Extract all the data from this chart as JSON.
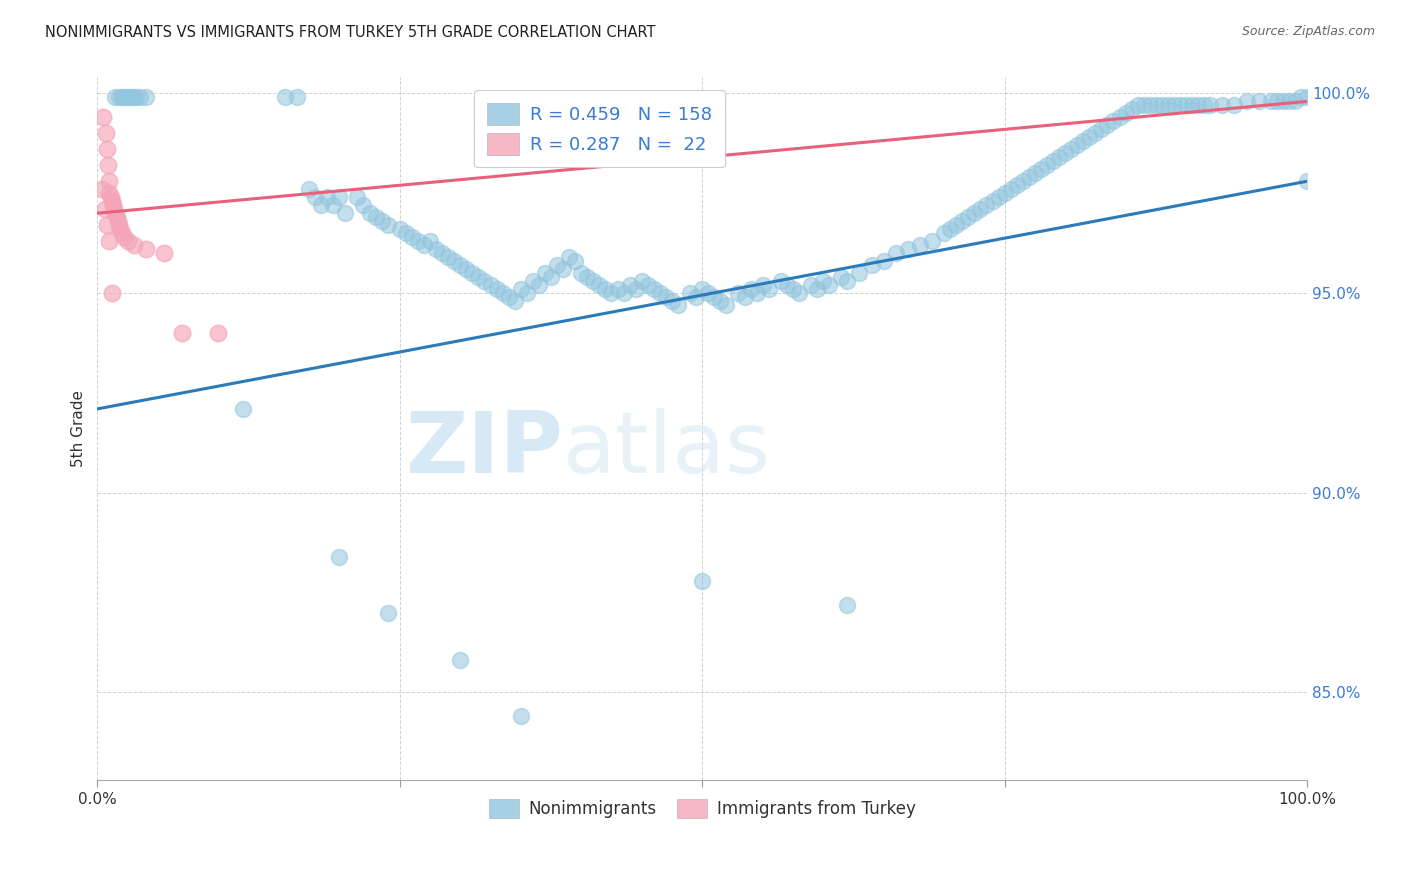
{
  "title": "NONIMMIGRANTS VS IMMIGRANTS FROM TURKEY 5TH GRADE CORRELATION CHART",
  "source": "Source: ZipAtlas.com",
  "ylabel": "5th Grade",
  "xmin": 0.0,
  "xmax": 1.0,
  "ymin": 0.828,
  "ymax": 1.004,
  "yticks": [
    0.85,
    0.9,
    0.95,
    1.0
  ],
  "ytick_labels": [
    "85.0%",
    "90.0%",
    "95.0%",
    "100.0%"
  ],
  "xticks": [
    0.0,
    0.25,
    0.5,
    0.75,
    1.0
  ],
  "xtick_labels": [
    "0.0%",
    "",
    "",
    "",
    "100.0%"
  ],
  "legend_R1": "0.459",
  "legend_N1": "158",
  "legend_R2": "0.287",
  "legend_N2": " 22",
  "blue_color": "#92c5de",
  "pink_color": "#f4a5b8",
  "line_blue": "#2b7bba",
  "line_pink": "#e8607a",
  "watermark_zip": "ZIP",
  "watermark_atlas": "atlas",
  "blue_line_x": [
    0.0,
    1.0
  ],
  "blue_line_y": [
    0.921,
    0.978
  ],
  "pink_line_x": [
    0.0,
    1.0
  ],
  "pink_line_y": [
    0.97,
    0.998
  ],
  "nonimmigrant_x": [
    0.015,
    0.018,
    0.02,
    0.022,
    0.025,
    0.028,
    0.03,
    0.032,
    0.035,
    0.04,
    0.12,
    0.155,
    0.165,
    0.175,
    0.18,
    0.185,
    0.19,
    0.195,
    0.2,
    0.205,
    0.215,
    0.22,
    0.225,
    0.23,
    0.235,
    0.24,
    0.25,
    0.255,
    0.26,
    0.265,
    0.27,
    0.275,
    0.28,
    0.285,
    0.29,
    0.295,
    0.3,
    0.305,
    0.31,
    0.315,
    0.32,
    0.325,
    0.33,
    0.335,
    0.34,
    0.345,
    0.35,
    0.355,
    0.36,
    0.365,
    0.37,
    0.375,
    0.38,
    0.385,
    0.39,
    0.395,
    0.4,
    0.405,
    0.41,
    0.415,
    0.42,
    0.425,
    0.43,
    0.435,
    0.44,
    0.445,
    0.45,
    0.455,
    0.46,
    0.465,
    0.47,
    0.475,
    0.48,
    0.49,
    0.495,
    0.5,
    0.505,
    0.51,
    0.515,
    0.52,
    0.53,
    0.535,
    0.54,
    0.545,
    0.55,
    0.555,
    0.565,
    0.57,
    0.575,
    0.58,
    0.59,
    0.595,
    0.6,
    0.605,
    0.615,
    0.62,
    0.63,
    0.64,
    0.65,
    0.66,
    0.67,
    0.68,
    0.69,
    0.7,
    0.705,
    0.71,
    0.715,
    0.72,
    0.725,
    0.73,
    0.735,
    0.74,
    0.745,
    0.75,
    0.755,
    0.76,
    0.765,
    0.77,
    0.775,
    0.78,
    0.785,
    0.79,
    0.795,
    0.8,
    0.805,
    0.81,
    0.815,
    0.82,
    0.825,
    0.83,
    0.835,
    0.84,
    0.845,
    0.85,
    0.855,
    0.86,
    0.865,
    0.87,
    0.875,
    0.88,
    0.885,
    0.89,
    0.895,
    0.9,
    0.905,
    0.91,
    0.915,
    0.92,
    0.93,
    0.94,
    0.95,
    0.96,
    0.97,
    0.975,
    0.98,
    0.985,
    0.99,
    0.995,
    1.0,
    1.0
  ],
  "nonimmigrant_y": [
    0.999,
    0.999,
    0.999,
    0.999,
    0.999,
    0.999,
    0.999,
    0.999,
    0.999,
    0.999,
    0.921,
    0.999,
    0.999,
    0.976,
    0.974,
    0.972,
    0.974,
    0.972,
    0.974,
    0.97,
    0.974,
    0.972,
    0.97,
    0.969,
    0.968,
    0.967,
    0.966,
    0.965,
    0.964,
    0.963,
    0.962,
    0.963,
    0.961,
    0.96,
    0.959,
    0.958,
    0.957,
    0.956,
    0.955,
    0.954,
    0.953,
    0.952,
    0.951,
    0.95,
    0.949,
    0.948,
    0.951,
    0.95,
    0.953,
    0.952,
    0.955,
    0.954,
    0.957,
    0.956,
    0.959,
    0.958,
    0.955,
    0.954,
    0.953,
    0.952,
    0.951,
    0.95,
    0.951,
    0.95,
    0.952,
    0.951,
    0.953,
    0.952,
    0.951,
    0.95,
    0.949,
    0.948,
    0.947,
    0.95,
    0.949,
    0.951,
    0.95,
    0.949,
    0.948,
    0.947,
    0.95,
    0.949,
    0.951,
    0.95,
    0.952,
    0.951,
    0.953,
    0.952,
    0.951,
    0.95,
    0.952,
    0.951,
    0.953,
    0.952,
    0.954,
    0.953,
    0.955,
    0.957,
    0.958,
    0.96,
    0.961,
    0.962,
    0.963,
    0.965,
    0.966,
    0.967,
    0.968,
    0.969,
    0.97,
    0.971,
    0.972,
    0.973,
    0.974,
    0.975,
    0.976,
    0.977,
    0.978,
    0.979,
    0.98,
    0.981,
    0.982,
    0.983,
    0.984,
    0.985,
    0.986,
    0.987,
    0.988,
    0.989,
    0.99,
    0.991,
    0.992,
    0.993,
    0.994,
    0.995,
    0.996,
    0.997,
    0.997,
    0.997,
    0.997,
    0.997,
    0.997,
    0.997,
    0.997,
    0.997,
    0.997,
    0.997,
    0.997,
    0.997,
    0.997,
    0.997,
    0.998,
    0.998,
    0.998,
    0.998,
    0.998,
    0.998,
    0.998,
    0.999,
    0.999,
    0.978
  ],
  "blue_outlier_x": [
    0.2,
    0.24,
    0.3,
    0.35,
    0.5,
    0.62
  ],
  "blue_outlier_y": [
    0.884,
    0.87,
    0.858,
    0.844,
    0.878,
    0.872
  ],
  "immigrant_x": [
    0.005,
    0.007,
    0.008,
    0.009,
    0.01,
    0.01,
    0.011,
    0.012,
    0.013,
    0.014,
    0.015,
    0.016,
    0.017,
    0.018,
    0.019,
    0.02,
    0.022,
    0.025,
    0.03,
    0.04,
    0.055,
    0.1
  ],
  "immigrant_y": [
    0.994,
    0.99,
    0.986,
    0.982,
    0.978,
    0.975,
    0.974,
    0.973,
    0.972,
    0.971,
    0.97,
    0.969,
    0.968,
    0.967,
    0.966,
    0.965,
    0.964,
    0.963,
    0.962,
    0.961,
    0.96,
    0.94
  ],
  "pink_outlier_x": [
    0.004,
    0.006,
    0.008,
    0.01,
    0.012,
    0.07
  ],
  "pink_outlier_y": [
    0.976,
    0.971,
    0.967,
    0.963,
    0.95,
    0.94
  ]
}
